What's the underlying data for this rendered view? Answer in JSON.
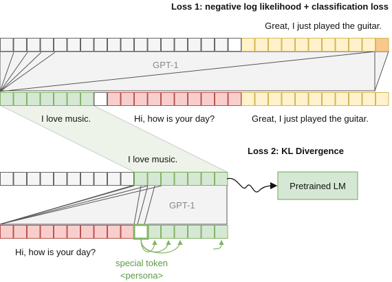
{
  "loss1": {
    "title": "Loss 1: negative log likelihood + classification loss",
    "target_text": "Great, I just played the guitar."
  },
  "top_model": {
    "label": "GPT-1",
    "input_segments": [
      "I love music.",
      "Hi, how is your day?",
      "Great, I just played the guitar."
    ]
  },
  "loss2": {
    "title": "Loss 2: KL Divergence",
    "target_text": "I love music.",
    "pretrained_label": "Pretrained LM"
  },
  "bottom_model": {
    "label": "GPT-1",
    "input_text": "Hi, how is your day?",
    "special_token_line1": "special token",
    "special_token_line2": "<persona>"
  },
  "colors": {
    "persona_fill": "#d5e8d4",
    "persona_stroke": "#82b366",
    "query_fill": "#f8cecc",
    "query_stroke": "#b85450",
    "response_fill": "#fff2cc",
    "response_stroke": "#d6b656",
    "last_token_fill": "#f8c88c",
    "special_token_text": "#5a9a44",
    "grey_cell": "#f5f5f5"
  }
}
